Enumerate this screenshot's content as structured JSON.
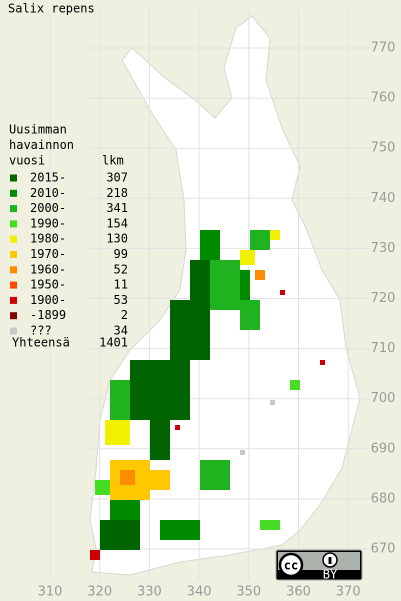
{
  "title": "Salix repens",
  "legend": {
    "header": [
      "Uusimman",
      "havainnon",
      "vuosi"
    ],
    "count_header": "lkm",
    "rows": [
      {
        "label": "2015-",
        "count": 307,
        "color": "#006400"
      },
      {
        "label": "2010-",
        "count": 218,
        "color": "#008a00"
      },
      {
        "label": "2000-",
        "count": 341,
        "color": "#1fb41f"
      },
      {
        "label": "1990-",
        "count": 154,
        "color": "#44dd22"
      },
      {
        "label": "1980-",
        "count": 130,
        "color": "#f0f000"
      },
      {
        "label": "1970-",
        "count": 99,
        "color": "#ffc800"
      },
      {
        "label": "1960-",
        "count": 52,
        "color": "#ff8c00"
      },
      {
        "label": "1950-",
        "count": 11,
        "color": "#ff4a00"
      },
      {
        "label": "1900-",
        "count": 53,
        "color": "#cc0000"
      },
      {
        "label": "-1899",
        "count": 2,
        "color": "#800000"
      },
      {
        "label": "???",
        "count": 34,
        "color": "#c8c8c8"
      }
    ],
    "total_label": "Yhteensä",
    "total": 1401
  },
  "grid": {
    "x_labels": [
      310,
      320,
      330,
      340,
      350,
      360,
      370
    ],
    "y_labels": [
      670,
      680,
      690,
      700,
      710,
      720,
      730,
      740,
      750,
      760,
      770
    ]
  },
  "license": {
    "badge": [
      "cc",
      "BY"
    ]
  }
}
